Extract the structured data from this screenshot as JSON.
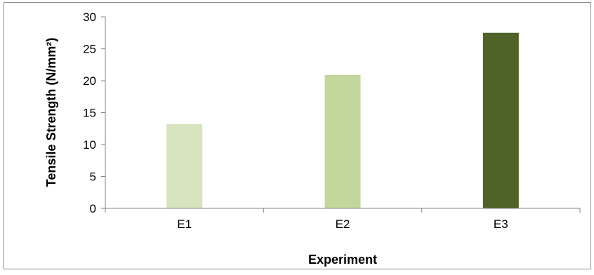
{
  "chart_data": {
    "type": "bar",
    "title": "",
    "xlabel": "Experiment",
    "ylabel": "Tensile Strength (N/mm²)",
    "categories": [
      "E1",
      "E2",
      "E3"
    ],
    "values": [
      13.2,
      20.9,
      27.5
    ],
    "colors": [
      "#d7e4bd",
      "#c3d69b",
      "#4f6228"
    ],
    "ylim": [
      0,
      30
    ],
    "yticks": [
      "0",
      "5",
      "10",
      "15",
      "20",
      "25",
      "30"
    ],
    "grid": false,
    "legend": "none"
  }
}
